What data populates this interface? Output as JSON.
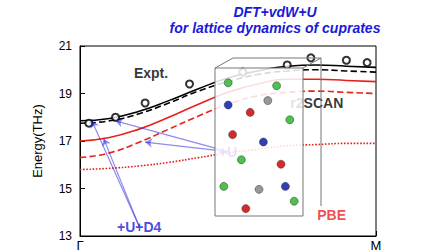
{
  "chart_data": {
    "type": "line",
    "title": "DFT+vdW+U",
    "subtitle": "for lattice dynamics of cuprates",
    "y_label": "Energy(THz)",
    "xlim": [
      0,
      1
    ],
    "xticks": [
      {
        "value": 0,
        "label": "Γ"
      },
      {
        "value": 1,
        "label": "M"
      }
    ],
    "ylim": [
      13,
      21
    ],
    "yticks": [
      13,
      15,
      17,
      19,
      21
    ],
    "grid": false,
    "x": [
      0,
      0.1,
      0.2,
      0.3,
      0.4,
      0.5,
      0.6,
      0.7,
      0.8,
      0.9,
      1
    ],
    "series": [
      {
        "color": "#000000",
        "line_style": "solid",
        "values": [
          17.85,
          17.95,
          18.25,
          18.7,
          19.2,
          19.65,
          19.95,
          20.15,
          20.2,
          20.15,
          20.1
        ]
      },
      {
        "color": "#000000",
        "line_style": "dashed",
        "values": [
          17.75,
          17.85,
          18.15,
          18.6,
          19.1,
          19.5,
          19.8,
          19.95,
          20.0,
          19.95,
          19.9
        ]
      },
      {
        "color": "#e8201a",
        "line_style": "solid",
        "values": [
          17.0,
          17.15,
          17.5,
          18.0,
          18.55,
          19.05,
          19.4,
          19.6,
          19.6,
          19.55,
          19.5
        ]
      },
      {
        "color": "#e8201a",
        "line_style": "dashed",
        "values": [
          16.3,
          16.5,
          16.95,
          17.5,
          18.05,
          18.55,
          18.9,
          19.05,
          19.1,
          19.05,
          19.0
        ]
      },
      {
        "color": "#e8201a",
        "line_style": "dotted",
        "values": [
          15.8,
          15.85,
          15.95,
          16.1,
          16.3,
          16.5,
          16.65,
          16.8,
          16.85,
          16.9,
          16.9
        ]
      }
    ],
    "experiment": {
      "type": "scatter",
      "marker": "circle",
      "color": "#000000",
      "x": [
        0.03,
        0.12,
        0.22,
        0.37,
        0.55,
        0.7,
        0.78,
        0.9,
        0.97
      ],
      "values": [
        17.75,
        18.0,
        18.6,
        19.4,
        19.9,
        20.2,
        20.5,
        20.4,
        20.3
      ]
    },
    "annotations": [
      {
        "text": "Expt.",
        "x": 0.24,
        "y": 19.85,
        "color": "#000000"
      },
      {
        "text": "r2SCAN",
        "x": 0.8,
        "y": 18.6,
        "color": "#000000"
      },
      {
        "text": "+U",
        "x": 0.5,
        "y": 16.55,
        "color": "#1a1adb",
        "points_to": [
          [
            0.12,
            17.85
          ],
          [
            0.22,
            16.95
          ]
        ]
      },
      {
        "text": "+U+D4",
        "x": 0.2,
        "y": 13.4,
        "color": "#1a1adb",
        "points_to": [
          [
            0.04,
            17.85
          ],
          [
            0.08,
            17.1
          ]
        ]
      },
      {
        "text": "PBE",
        "x": 0.85,
        "y": 13.9,
        "color": "#e8201a"
      }
    ]
  }
}
